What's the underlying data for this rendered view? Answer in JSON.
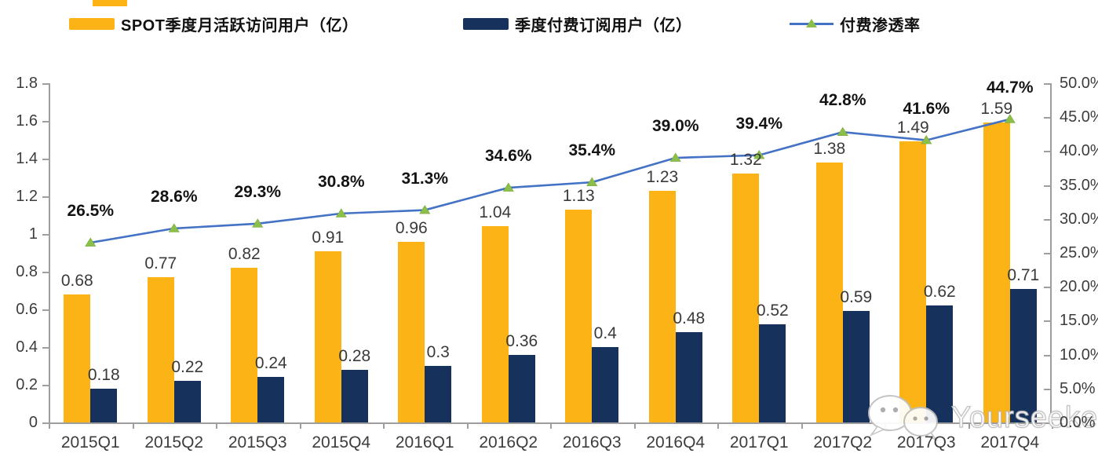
{
  "legend": {
    "items": [
      {
        "label": "SPOT季度月活跃访问用户（亿）",
        "swatch": "bar"
      },
      {
        "label": "季度付费订阅用户（亿）",
        "swatch": "bar"
      },
      {
        "label": "付费渗透率",
        "swatch": "line-triangle"
      }
    ]
  },
  "chart_data": {
    "type": "bar",
    "title": "",
    "categories": [
      "2015Q1",
      "2015Q2",
      "2015Q3",
      "2015Q4",
      "2016Q1",
      "2016Q2",
      "2016Q3",
      "2016Q4",
      "2017Q1",
      "2017Q2",
      "2017Q3",
      "2017Q4"
    ],
    "series": [
      {
        "name": "SPOT季度月活跃访问用户（亿）",
        "type": "bar",
        "axis": "left",
        "color": "#FBB316",
        "values": [
          0.68,
          0.77,
          0.82,
          0.91,
          0.96,
          1.04,
          1.13,
          1.23,
          1.32,
          1.38,
          1.49,
          1.59
        ],
        "labels": [
          "0.68",
          "0.77",
          "0.82",
          "0.91",
          "0.96",
          "1.04",
          "1.13",
          "1.23",
          "1.32",
          "1.38",
          "1.49",
          "1.59"
        ]
      },
      {
        "name": "季度付费订阅用户（亿）",
        "type": "bar",
        "axis": "left",
        "color": "#16325C",
        "values": [
          0.18,
          0.22,
          0.24,
          0.28,
          0.3,
          0.36,
          0.4,
          0.48,
          0.52,
          0.59,
          0.62,
          0.71
        ],
        "labels": [
          "0.18",
          "0.22",
          "0.24",
          "0.28",
          "0.3",
          "0.36",
          "0.4",
          "0.48",
          "0.52",
          "0.59",
          "0.62",
          "0.71"
        ]
      },
      {
        "name": "付费渗透率",
        "type": "line",
        "axis": "right",
        "color": "#4472C4",
        "marker": "triangle",
        "marker_color": "#8CBF4A",
        "values": [
          26.5,
          28.6,
          29.3,
          30.8,
          31.3,
          34.6,
          35.4,
          39.0,
          39.4,
          42.8,
          41.6,
          44.7
        ],
        "labels": [
          "26.5%",
          "28.6%",
          "29.3%",
          "30.8%",
          "31.3%",
          "34.6%",
          "35.4%",
          "39.0%",
          "39.4%",
          "42.8%",
          "41.6%",
          "44.7%"
        ]
      }
    ],
    "left_axis": {
      "min": 0,
      "max": 1.8,
      "step": 0.2,
      "ticks": [
        "0",
        "0.2",
        "0.4",
        "0.6",
        "0.8",
        "1",
        "1.2",
        "1.4",
        "1.6",
        "1.8"
      ]
    },
    "right_axis": {
      "min": 0,
      "max": 50,
      "step": 5,
      "ticks": [
        "0.0%",
        "5.0%",
        "10.0%",
        "15.0%",
        "20.0%",
        "25.0%",
        "30.0%",
        "35.0%",
        "40.0%",
        "45.0%",
        "50.0%"
      ]
    },
    "legend_position": "top",
    "grid": false
  },
  "watermark": {
    "text": "Yourseeker",
    "icon": "wechat-icon"
  }
}
